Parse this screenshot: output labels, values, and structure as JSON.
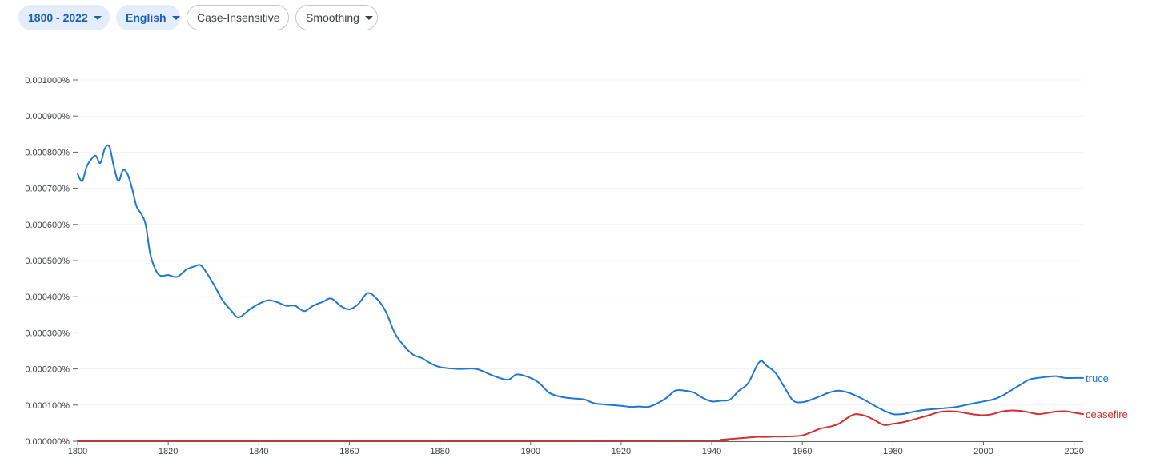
{
  "toolbar": {
    "range_label": "1800 - 2022",
    "corpus_label": "English",
    "case_label": "Case-Insensitive",
    "smoothing_label": "Smoothing"
  },
  "colors": {
    "truce": "#1f77d0",
    "ceasefire": "#d32f2f",
    "chip_bg": "#e3edfb",
    "chip_text": "#1a5fb4"
  },
  "chart_data": {
    "type": "line",
    "xlim": [
      1800,
      2022
    ],
    "ylim": [
      0,
      0.001
    ],
    "x_ticks": [
      1800,
      1820,
      1840,
      1860,
      1880,
      1900,
      1920,
      1940,
      1960,
      1980,
      2000,
      2020
    ],
    "y_ticks": [
      0,
      0.0001,
      0.0002,
      0.0003,
      0.0004,
      0.0005,
      0.0006,
      0.0007,
      0.0008,
      0.0009,
      0.001
    ],
    "y_tick_labels": [
      "0.000000%",
      "0.000100%",
      "0.000200%",
      "0.000300%",
      "0.000400%",
      "0.000500%",
      "0.000600%",
      "0.000700%",
      "0.000800%",
      "0.000900%",
      "0.001000%"
    ],
    "grid": true,
    "series": [
      {
        "name": "truce",
        "x": [
          1800,
          1801,
          1802,
          1803,
          1804,
          1805,
          1806,
          1807,
          1808,
          1809,
          1810,
          1811,
          1812,
          1813,
          1814,
          1815,
          1816,
          1817,
          1818,
          1819,
          1820,
          1822,
          1824,
          1826,
          1827,
          1828,
          1830,
          1832,
          1834,
          1835,
          1836,
          1838,
          1840,
          1842,
          1844,
          1846,
          1848,
          1850,
          1852,
          1854,
          1856,
          1858,
          1860,
          1862,
          1864,
          1866,
          1868,
          1870,
          1872,
          1874,
          1876,
          1878,
          1880,
          1884,
          1888,
          1892,
          1895,
          1897,
          1900,
          1902,
          1904,
          1906,
          1908,
          1910,
          1912,
          1914,
          1916,
          1918,
          1920,
          1922,
          1924,
          1926,
          1928,
          1930,
          1932,
          1934,
          1936,
          1938,
          1940,
          1942,
          1944,
          1946,
          1948,
          1950,
          1951,
          1952,
          1954,
          1956,
          1958,
          1960,
          1962,
          1964,
          1966,
          1968,
          1970,
          1972,
          1974,
          1976,
          1978,
          1980,
          1982,
          1984,
          1986,
          1988,
          1990,
          1992,
          1994,
          1996,
          1998,
          2000,
          2002,
          2004,
          2006,
          2008,
          2010,
          2012,
          2014,
          2016,
          2018,
          2020,
          2022
        ],
        "y": [
          0.00074,
          0.00072,
          0.00076,
          0.00078,
          0.00079,
          0.00077,
          0.00081,
          0.000815,
          0.00076,
          0.00072,
          0.00075,
          0.00074,
          0.0007,
          0.00065,
          0.00063,
          0.0006,
          0.00052,
          0.00048,
          0.00046,
          0.000458,
          0.00046,
          0.000455,
          0.000475,
          0.000485,
          0.000488,
          0.000475,
          0.000435,
          0.00039,
          0.00036,
          0.000345,
          0.000345,
          0.000365,
          0.00038,
          0.00039,
          0.000385,
          0.000375,
          0.000375,
          0.00036,
          0.000375,
          0.000385,
          0.000395,
          0.000375,
          0.000365,
          0.00038,
          0.00041,
          0.000395,
          0.00036,
          0.0003,
          0.000265,
          0.00024,
          0.00023,
          0.000215,
          0.000205,
          0.0002,
          0.0002,
          0.00018,
          0.00017,
          0.000185,
          0.000175,
          0.00016,
          0.000135,
          0.000125,
          0.00012,
          0.000118,
          0.000115,
          0.000105,
          0.000102,
          0.0001,
          9.8e-05,
          9.5e-05,
          9.6e-05,
          9.5e-05,
          0.000105,
          0.00012,
          0.00014,
          0.00014,
          0.000135,
          0.00012,
          0.00011,
          0.000112,
          0.000115,
          0.00014,
          0.00016,
          0.00021,
          0.000222,
          0.00021,
          0.00019,
          0.00015,
          0.000112,
          0.000108,
          0.000115,
          0.000125,
          0.000135,
          0.00014,
          0.000135,
          0.000125,
          0.000112,
          9.8e-05,
          8.5e-05,
          7.5e-05,
          7.5e-05,
          8e-05,
          8.5e-05,
          8.8e-05,
          9e-05,
          9.2e-05,
          9.5e-05,
          0.0001,
          0.000105,
          0.00011,
          0.000115,
          0.000125,
          0.00014,
          0.000155,
          0.00017,
          0.000175,
          0.000178,
          0.00018,
          0.000175,
          0.000175,
          0.000175
        ]
      },
      {
        "name": "ceasefire",
        "x": [
          1800,
          1900,
          1940,
          1942,
          1944,
          1946,
          1948,
          1950,
          1952,
          1954,
          1956,
          1958,
          1960,
          1962,
          1964,
          1966,
          1968,
          1970,
          1971,
          1972,
          1974,
          1976,
          1978,
          1980,
          1982,
          1984,
          1986,
          1988,
          1990,
          1992,
          1994,
          1996,
          1998,
          2000,
          2002,
          2004,
          2006,
          2008,
          2010,
          2012,
          2014,
          2016,
          2018,
          2020,
          2022
        ],
        "y": [
          1e-06,
          1e-06,
          2e-06,
          4e-06,
          6e-06,
          8e-06,
          1e-05,
          1.2e-05,
          1.2e-05,
          1.3e-05,
          1.3e-05,
          1.4e-05,
          1.6e-05,
          2.5e-05,
          3.5e-05,
          4e-05,
          4.8e-05,
          6.5e-05,
          7.2e-05,
          7.5e-05,
          7e-05,
          5.8e-05,
          4.5e-05,
          4.8e-05,
          5.2e-05,
          5.8e-05,
          6.5e-05,
          7.2e-05,
          8e-05,
          8.3e-05,
          8.2e-05,
          7.8e-05,
          7.4e-05,
          7.2e-05,
          7.5e-05,
          8.2e-05,
          8.5e-05,
          8.4e-05,
          8e-05,
          7.5e-05,
          7.8e-05,
          8.2e-05,
          8.3e-05,
          7.9e-05,
          7.5e-05
        ]
      }
    ]
  }
}
